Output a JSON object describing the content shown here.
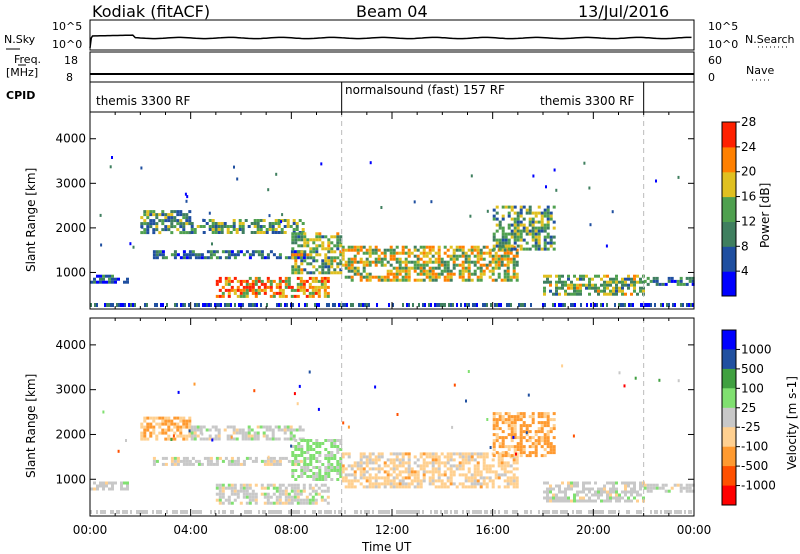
{
  "header": {
    "radar": "Kodiak (fitACF)",
    "beam": "Beam 04",
    "date": "13/Jul/2016"
  },
  "top_panels": {
    "nsky_label": "N.Sky",
    "nsearch_label": "N.Search",
    "nsky_ticks": [
      "10^5",
      "10^0"
    ],
    "nsearch_ticks": [
      "10^5",
      "10^0"
    ],
    "freq_label_1": "Freq.",
    "freq_label_2": "[MHz]",
    "freq_ticks": [
      "18",
      "8"
    ],
    "nave_label": "Nave",
    "nave_ticks": [
      "60",
      "0"
    ],
    "cpid_label": "CPID",
    "cpid_segments": [
      {
        "label": "themis 3300 RF",
        "start_hour": 0,
        "end_hour": 10
      },
      {
        "label": "normalsound (fast) 157 RF",
        "start_hour": 10,
        "end_hour": 22
      },
      {
        "label": "themis 3300 RF",
        "start_hour": 22,
        "end_hour": 24
      }
    ]
  },
  "chart_data": [
    {
      "type": "heatmap",
      "panel": "power",
      "ylabel": "Slant Range [km]",
      "yticks": [
        "1000",
        "2000",
        "3000",
        "4000"
      ],
      "ylim": [
        180,
        4600
      ],
      "xlim": [
        0,
        24
      ],
      "colorbar_label": "Power [dB]",
      "colorbar_ticks": [
        "4",
        "8",
        "12",
        "16",
        "20",
        "24",
        "28"
      ],
      "colorbar_range": [
        0,
        30
      ],
      "colors": [
        "#0000ff",
        "#1f4fa0",
        "#3f7f5f",
        "#4fa04f",
        "#e0c020",
        "#ff8000",
        "#ff2000"
      ],
      "echo_regions": [
        {
          "t": [
            0.0,
            1.5
          ],
          "r": [
            750,
            950
          ],
          "level": 0.25
        },
        {
          "t": [
            2.0,
            4.0
          ],
          "r": [
            1900,
            2400
          ],
          "level": 0.4
        },
        {
          "t": [
            2.5,
            8.5
          ],
          "r": [
            1300,
            1500
          ],
          "level": 0.3
        },
        {
          "t": [
            4.0,
            8.5
          ],
          "r": [
            1900,
            2200
          ],
          "level": 0.45
        },
        {
          "t": [
            5.0,
            9.5
          ],
          "r": [
            450,
            900
          ],
          "level": 0.75
        },
        {
          "t": [
            8.0,
            10.0
          ],
          "r": [
            1000,
            1900
          ],
          "level": 0.5
        },
        {
          "t": [
            10.0,
            17.0
          ],
          "r": [
            850,
            1600
          ],
          "level": 0.6
        },
        {
          "t": [
            16.0,
            18.5
          ],
          "r": [
            1500,
            2500
          ],
          "level": 0.45
        },
        {
          "t": [
            18.0,
            22.0
          ],
          "r": [
            500,
            950
          ],
          "level": 0.5
        },
        {
          "t": [
            22.0,
            24.0
          ],
          "r": [
            700,
            900
          ],
          "level": 0.3
        }
      ]
    },
    {
      "type": "heatmap",
      "panel": "velocity",
      "xlabel": "Time UT",
      "ylabel": "Slant Range [km]",
      "yticks": [
        "1000",
        "2000",
        "3000",
        "4000"
      ],
      "ylim": [
        180,
        4600
      ],
      "xlim": [
        0,
        24
      ],
      "xticks": [
        "00:00",
        "04:00",
        "08:00",
        "12:00",
        "16:00",
        "20:00",
        "00:00"
      ],
      "colorbar_label": "Velocity [m s-1]",
      "colorbar_ticks": [
        "1000",
        "500",
        "100",
        "25",
        "-25",
        "-100",
        "-500",
        "-1000"
      ],
      "colorbar_range": [
        -1000,
        1000
      ],
      "colors": [
        "#ff0000",
        "#ff5000",
        "#ff9a30",
        "#ffd090",
        "#c8c8c8",
        "#80e070",
        "#40a040",
        "#2050a0",
        "#0000ff"
      ],
      "echo_regions": [
        {
          "t": [
            0.0,
            1.5
          ],
          "r": [
            750,
            950
          ],
          "v": 0
        },
        {
          "t": [
            2.0,
            4.0
          ],
          "r": [
            1900,
            2400
          ],
          "v": -300
        },
        {
          "t": [
            2.5,
            8.5
          ],
          "r": [
            1300,
            1500
          ],
          "v": 0
        },
        {
          "t": [
            4.0,
            8.5
          ],
          "r": [
            1900,
            2200
          ],
          "v": 0
        },
        {
          "t": [
            5.0,
            9.5
          ],
          "r": [
            450,
            900
          ],
          "v": 0
        },
        {
          "t": [
            8.0,
            10.0
          ],
          "r": [
            1000,
            1900
          ],
          "v": 150
        },
        {
          "t": [
            10.0,
            17.0
          ],
          "r": [
            850,
            1600
          ],
          "v": -200
        },
        {
          "t": [
            16.0,
            18.5
          ],
          "r": [
            1500,
            2500
          ],
          "v": -400
        },
        {
          "t": [
            18.0,
            22.0
          ],
          "r": [
            500,
            950
          ],
          "v": 0
        },
        {
          "t": [
            22.0,
            24.0
          ],
          "r": [
            700,
            900
          ],
          "v": 0
        }
      ]
    }
  ]
}
